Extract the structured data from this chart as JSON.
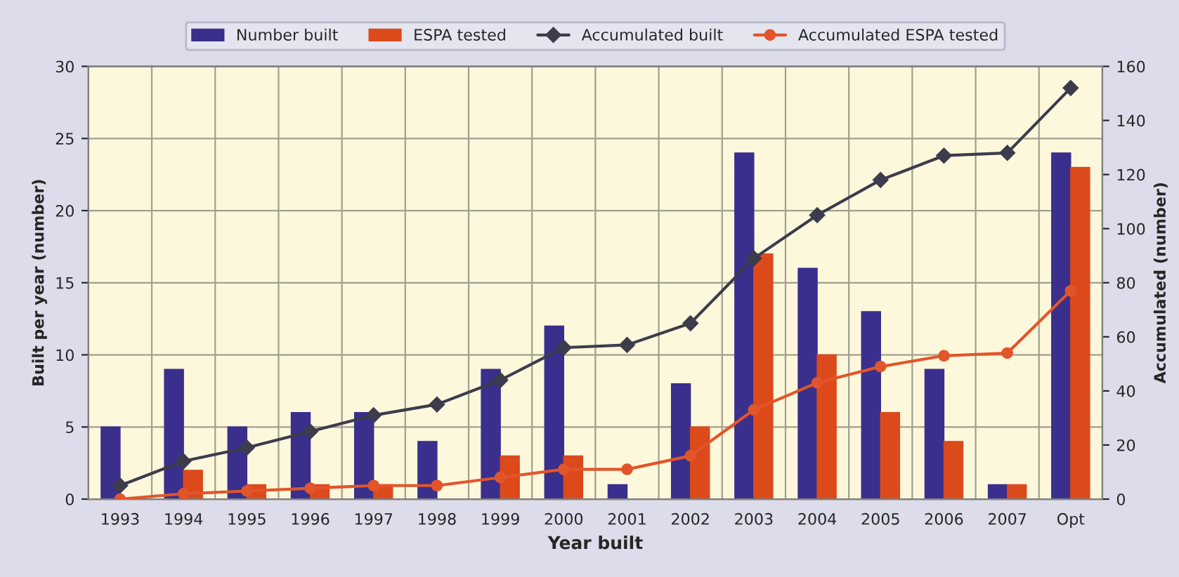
{
  "chart_data": {
    "type": "bar",
    "xlabel": "Year built",
    "ylabel": "Built per year (number)",
    "y2label": "Accumulated (number)",
    "categories": [
      "1993",
      "1994",
      "1995",
      "1996",
      "1997",
      "1998",
      "1999",
      "2000",
      "2001",
      "2002",
      "2003",
      "2004",
      "2005",
      "2006",
      "2007",
      "Opt"
    ],
    "series": [
      {
        "name": "Number built",
        "color": "#3a2f8c",
        "values": [
          5,
          9,
          5,
          6,
          6,
          4,
          9,
          12,
          1,
          8,
          24,
          16,
          13,
          9,
          1,
          24
        ]
      },
      {
        "name": "ESPA tested",
        "color": "#dc4a1c",
        "values": [
          0,
          2,
          1,
          1,
          1,
          0,
          3,
          3,
          0,
          5,
          17,
          10,
          6,
          4,
          1,
          23
        ]
      },
      {
        "name": "Accumulated built",
        "type": "line",
        "axis": "y2",
        "color": "#3c3c4c",
        "marker": "diamond",
        "values": [
          5,
          14,
          19,
          25,
          31,
          35,
          44,
          56,
          57,
          65,
          89,
          105,
          118,
          127,
          128,
          152
        ]
      },
      {
        "name": "Accumulated ESPA tested",
        "type": "line",
        "axis": "y2",
        "color": "#e2552a",
        "marker": "circle",
        "values": [
          0,
          2,
          3,
          4,
          5,
          5,
          8,
          11,
          11,
          16,
          33,
          43,
          49,
          53,
          54,
          77
        ]
      }
    ],
    "ylim": [
      0,
      30
    ],
    "yticks": [
      0,
      5,
      10,
      15,
      20,
      25,
      30
    ],
    "y2lim": [
      0,
      160
    ],
    "y2ticks": [
      0,
      20,
      40,
      60,
      80,
      100,
      120,
      140,
      160
    ],
    "grid": true,
    "legend": "top",
    "line_style": "solid"
  }
}
